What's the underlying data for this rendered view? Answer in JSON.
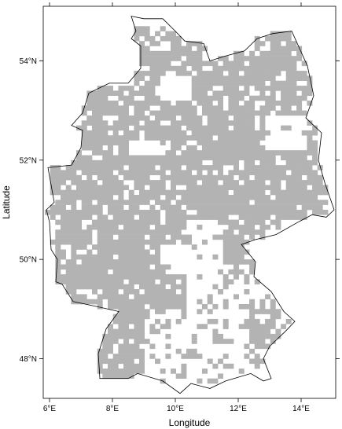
{
  "chart_data": {
    "type": "heatmap",
    "title": "",
    "xlabel": "Longitude",
    "ylabel": "Latitude",
    "xlim": [
      5.8,
      15.1
    ],
    "ylim": [
      47.2,
      55.1
    ],
    "x_ticks": [
      6,
      8,
      10,
      12,
      14
    ],
    "x_tick_labels": [
      "6°E",
      "8°E",
      "10°E",
      "12°E",
      "14°E"
    ],
    "y_ticks": [
      48,
      50,
      52,
      54
    ],
    "y_tick_labels": [
      "48°N",
      "50°N",
      "52°N",
      "54°N"
    ],
    "grid": false,
    "legend": "none",
    "cell_size_deg": {
      "lon": 0.1667,
      "lat": 0.1
    },
    "colors": {
      "occupied_cell": "#b3b3b3",
      "outline": "#000000",
      "background": "#ffffff"
    },
    "presence_legend": {
      "filled": "occupied grid cell"
    },
    "outline": {
      "description": "Germany border outline",
      "points": [
        [
          8.6,
          54.9
        ],
        [
          9.0,
          54.85
        ],
        [
          9.6,
          54.85
        ],
        [
          10.0,
          54.6
        ],
        [
          10.3,
          54.4
        ],
        [
          10.9,
          54.35
        ],
        [
          11.1,
          54.0
        ],
        [
          11.6,
          54.1
        ],
        [
          12.2,
          54.2
        ],
        [
          12.6,
          54.45
        ],
        [
          13.1,
          54.55
        ],
        [
          13.7,
          54.6
        ],
        [
          14.2,
          53.9
        ],
        [
          14.4,
          53.3
        ],
        [
          14.15,
          52.85
        ],
        [
          14.65,
          52.55
        ],
        [
          14.55,
          52.0
        ],
        [
          14.75,
          51.55
        ],
        [
          15.05,
          51.0
        ],
        [
          14.8,
          50.85
        ],
        [
          14.35,
          50.9
        ],
        [
          13.9,
          50.75
        ],
        [
          13.2,
          50.5
        ],
        [
          12.55,
          50.4
        ],
        [
          12.1,
          50.3
        ],
        [
          12.55,
          49.95
        ],
        [
          12.5,
          49.65
        ],
        [
          13.05,
          49.35
        ],
        [
          13.45,
          48.95
        ],
        [
          13.8,
          48.75
        ],
        [
          13.5,
          48.55
        ],
        [
          13.0,
          48.25
        ],
        [
          12.8,
          48.0
        ],
        [
          13.05,
          47.6
        ],
        [
          12.8,
          47.55
        ],
        [
          12.4,
          47.7
        ],
        [
          11.6,
          47.55
        ],
        [
          11.1,
          47.4
        ],
        [
          10.5,
          47.5
        ],
        [
          10.15,
          47.3
        ],
        [
          9.6,
          47.55
        ],
        [
          8.8,
          47.7
        ],
        [
          8.5,
          47.6
        ],
        [
          7.6,
          47.6
        ],
        [
          7.55,
          48.1
        ],
        [
          7.8,
          48.6
        ],
        [
          8.2,
          48.95
        ],
        [
          7.5,
          49.05
        ],
        [
          6.75,
          49.15
        ],
        [
          6.4,
          49.5
        ],
        [
          6.2,
          49.55
        ],
        [
          6.25,
          50.0
        ],
        [
          6.05,
          50.2
        ],
        [
          6.0,
          50.75
        ],
        [
          5.9,
          51.0
        ],
        [
          6.15,
          51.15
        ],
        [
          6.05,
          51.5
        ],
        [
          5.95,
          51.85
        ],
        [
          6.7,
          51.9
        ],
        [
          7.0,
          52.25
        ],
        [
          7.05,
          52.6
        ],
        [
          6.7,
          52.7
        ],
        [
          7.05,
          52.95
        ],
        [
          7.25,
          53.35
        ],
        [
          7.9,
          53.55
        ],
        [
          8.5,
          53.55
        ],
        [
          8.9,
          53.85
        ],
        [
          8.9,
          54.3
        ],
        [
          8.6,
          54.45
        ],
        [
          8.75,
          54.6
        ],
        [
          8.6,
          54.9
        ]
      ]
    },
    "occupied_regions": [
      {
        "lon_min": 6.0,
        "lon_max": 14.8,
        "lat_min": 50.8,
        "lat_max": 52.3
      },
      {
        "lon_min": 7.0,
        "lon_max": 14.5,
        "lat_min": 52.3,
        "lat_max": 53.6
      },
      {
        "lon_min": 8.5,
        "lon_max": 14.3,
        "lat_min": 53.6,
        "lat_max": 54.7
      },
      {
        "lon_min": 6.2,
        "lon_max": 10.3,
        "lat_min": 49.0,
        "lat_max": 50.8
      },
      {
        "lon_min": 11.5,
        "lon_max": 12.9,
        "lat_min": 49.9,
        "lat_max": 50.8
      },
      {
        "lon_min": 7.6,
        "lon_max": 9.0,
        "lat_min": 47.6,
        "lat_max": 49.0
      },
      {
        "lon_min": 7.0,
        "lon_max": 8.3,
        "lat_min": 48.6,
        "lat_max": 49.3
      },
      {
        "lon_min": 12.3,
        "lon_max": 13.3,
        "lat_min": 47.9,
        "lat_max": 49.2
      }
    ],
    "empty_regions": [
      {
        "lon_min": 12.9,
        "lon_max": 14.2,
        "lat_min": 52.2,
        "lat_max": 52.9
      },
      {
        "lon_min": 8.6,
        "lon_max": 9.8,
        "lat_min": 52.1,
        "lat_max": 52.4
      },
      {
        "lon_min": 9.6,
        "lon_max": 10.6,
        "lat_min": 53.2,
        "lat_max": 53.7
      },
      {
        "lon_min": 9.6,
        "lon_max": 11.6,
        "lat_min": 49.7,
        "lat_max": 50.3
      }
    ]
  }
}
